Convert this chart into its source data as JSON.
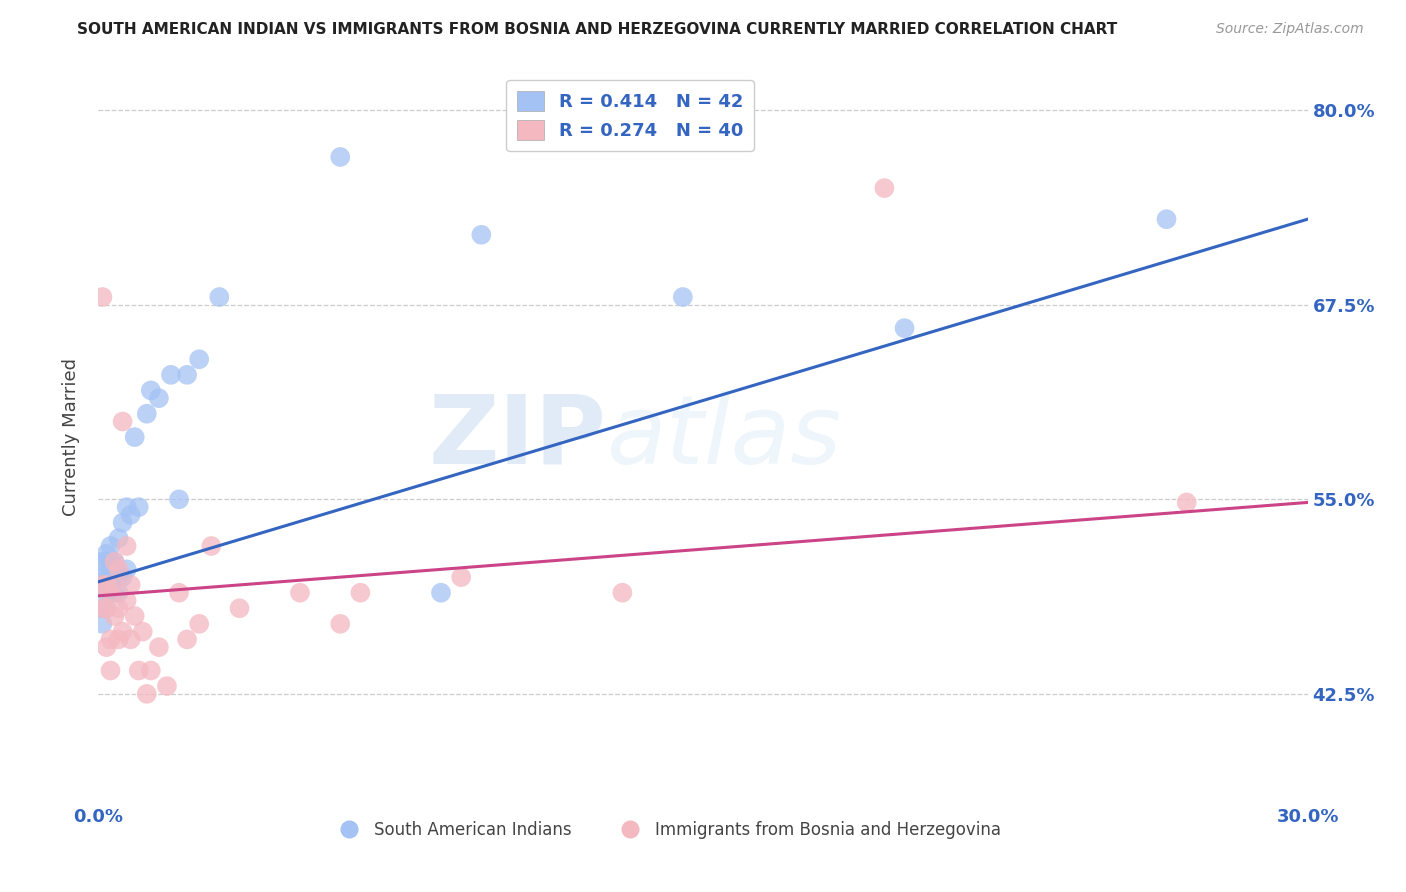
{
  "title": "SOUTH AMERICAN INDIAN VS IMMIGRANTS FROM BOSNIA AND HERZEGOVINA CURRENTLY MARRIED CORRELATION CHART",
  "source": "Source: ZipAtlas.com",
  "xlabel_blue": "South American Indians",
  "xlabel_pink": "Immigrants from Bosnia and Herzegovina",
  "ylabel": "Currently Married",
  "R_blue": 0.414,
  "N_blue": 42,
  "R_pink": 0.274,
  "N_pink": 40,
  "xlim": [
    0.0,
    0.3
  ],
  "ylim": [
    0.355,
    0.825
  ],
  "yticks": [
    0.425,
    0.55,
    0.675,
    0.8
  ],
  "ytick_labels": [
    "42.5%",
    "55.0%",
    "67.5%",
    "80.0%"
  ],
  "xticks": [
    0.0,
    0.05,
    0.1,
    0.15,
    0.2,
    0.25,
    0.3
  ],
  "xtick_labels": [
    "0.0%",
    "",
    "",
    "",
    "",
    "",
    "30.0%"
  ],
  "color_blue": "#a4c2f4",
  "color_pink": "#f4b8c1",
  "line_color_blue": "#3465c0",
  "line_color_pink": "#cc4488",
  "watermark_zip": "ZIP",
  "watermark_atlas": "atlas",
  "blue_x": [
    0.001,
    0.001,
    0.001,
    0.001,
    0.001,
    0.002,
    0.002,
    0.002,
    0.002,
    0.002,
    0.003,
    0.003,
    0.003,
    0.003,
    0.003,
    0.004,
    0.004,
    0.004,
    0.005,
    0.005,
    0.005,
    0.006,
    0.006,
    0.007,
    0.007,
    0.008,
    0.009,
    0.01,
    0.012,
    0.013,
    0.015,
    0.018,
    0.02,
    0.022,
    0.025,
    0.03,
    0.06,
    0.085,
    0.095,
    0.145,
    0.2,
    0.265
  ],
  "blue_y": [
    0.5,
    0.51,
    0.495,
    0.48,
    0.47,
    0.49,
    0.5,
    0.515,
    0.48,
    0.51,
    0.49,
    0.5,
    0.51,
    0.495,
    0.52,
    0.49,
    0.5,
    0.51,
    0.49,
    0.5,
    0.525,
    0.5,
    0.535,
    0.505,
    0.545,
    0.54,
    0.59,
    0.545,
    0.605,
    0.62,
    0.615,
    0.63,
    0.55,
    0.63,
    0.64,
    0.68,
    0.77,
    0.49,
    0.72,
    0.68,
    0.66,
    0.73
  ],
  "pink_x": [
    0.001,
    0.001,
    0.001,
    0.002,
    0.002,
    0.002,
    0.003,
    0.003,
    0.003,
    0.004,
    0.004,
    0.004,
    0.005,
    0.005,
    0.005,
    0.006,
    0.006,
    0.007,
    0.007,
    0.008,
    0.008,
    0.009,
    0.01,
    0.011,
    0.012,
    0.013,
    0.015,
    0.017,
    0.02,
    0.022,
    0.025,
    0.028,
    0.035,
    0.05,
    0.06,
    0.065,
    0.09,
    0.13,
    0.195,
    0.27
  ],
  "pink_y": [
    0.48,
    0.495,
    0.68,
    0.455,
    0.48,
    0.495,
    0.44,
    0.46,
    0.49,
    0.475,
    0.495,
    0.51,
    0.46,
    0.48,
    0.505,
    0.465,
    0.6,
    0.485,
    0.52,
    0.46,
    0.495,
    0.475,
    0.44,
    0.465,
    0.425,
    0.44,
    0.455,
    0.43,
    0.49,
    0.46,
    0.47,
    0.52,
    0.48,
    0.49,
    0.47,
    0.49,
    0.5,
    0.49,
    0.75,
    0.548
  ],
  "blue_line_x0": 0.0,
  "blue_line_y0": 0.497,
  "blue_line_x1": 0.3,
  "blue_line_y1": 0.73,
  "pink_line_x0": 0.0,
  "pink_line_y0": 0.488,
  "pink_line_x1": 0.3,
  "pink_line_y1": 0.548
}
